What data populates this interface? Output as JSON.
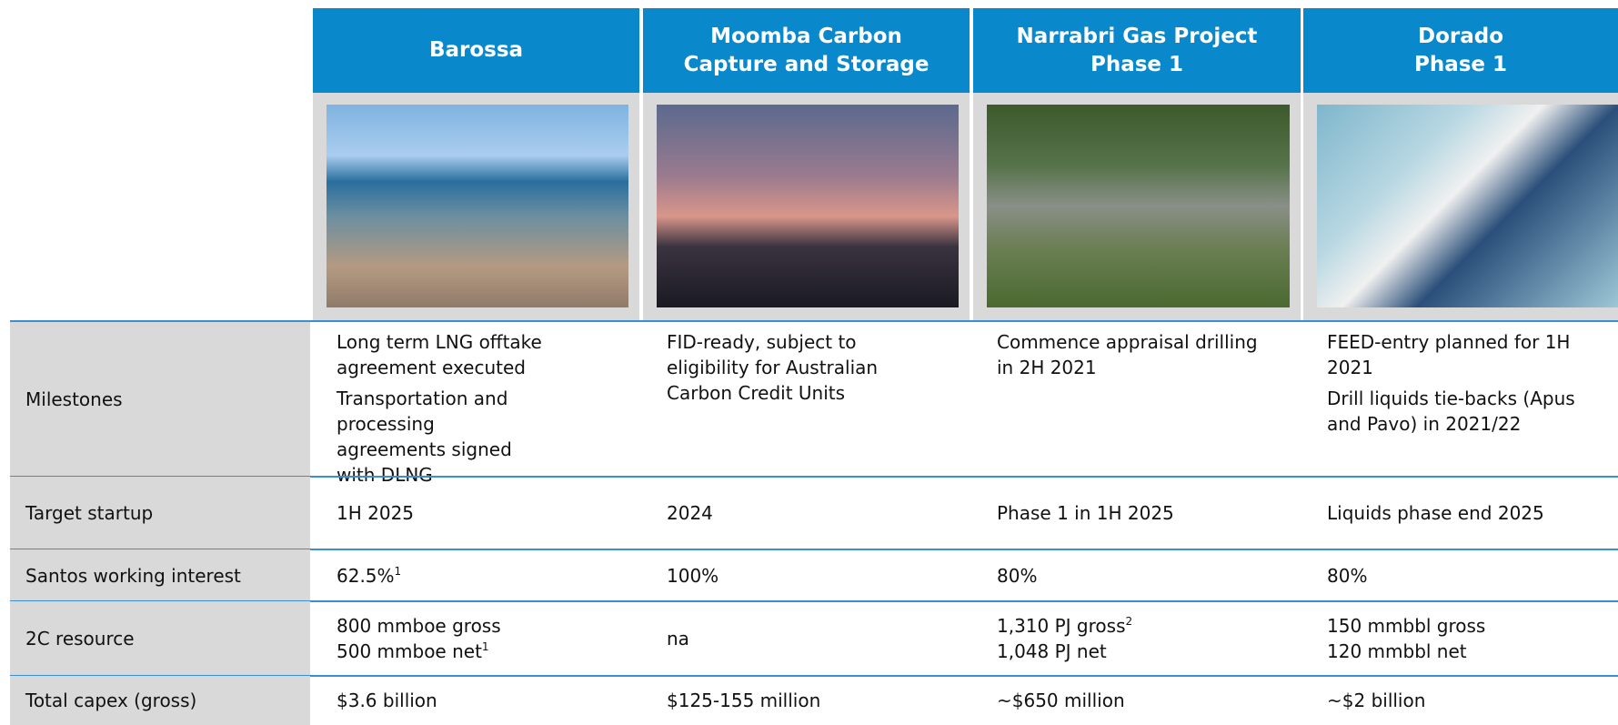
{
  "table": {
    "columns": [
      [
        "Barossa"
      ],
      [
        "Moomba Carbon",
        "Capture and Storage"
      ],
      [
        "Narrabri Gas Project",
        "Phase 1"
      ],
      [
        "Dorado",
        "Phase 1"
      ]
    ],
    "rows": [
      {
        "label": "Milestones",
        "cells": [
          [
            {
              "text": "Long term LNG offtake agreement executed"
            },
            {
              "text": "Transportation and processing agreements signed with DLNG"
            }
          ],
          [
            {
              "text": "FID-ready, subject to eligibility for Australian Carbon Credit Units"
            }
          ],
          [
            {
              "text": "Commence appraisal drilling in 2H 2021"
            }
          ],
          [
            {
              "text": "FEED-entry planned for 1H 2021"
            },
            {
              "text": "Drill liquids tie-backs (Apus and Pavo) in 2021/22"
            }
          ]
        ]
      },
      {
        "label": "Target startup",
        "cells": [
          [
            {
              "text": "1H 2025"
            }
          ],
          [
            {
              "text": "2024"
            }
          ],
          [
            {
              "text": "Phase 1 in 1H 2025"
            }
          ],
          [
            {
              "text": "Liquids phase end 2025"
            }
          ]
        ]
      },
      {
        "label": "Santos working interest",
        "cells": [
          [
            {
              "text": "62.5%",
              "sup": "1"
            }
          ],
          [
            {
              "text": "100%"
            }
          ],
          [
            {
              "text": "80%"
            }
          ],
          [
            {
              "text": "80%"
            }
          ]
        ]
      },
      {
        "label": "2C resource",
        "cells": [
          [
            {
              "text": "800 mmboe gross"
            },
            {
              "text": "500 mmboe net",
              "sup": "1"
            }
          ],
          [
            {
              "text": "na"
            }
          ],
          [
            {
              "text": "1,310 PJ gross",
              "sup": "2"
            },
            {
              "text": "1,048 PJ net"
            }
          ],
          [
            {
              "text": "150 mmbbl gross"
            },
            {
              "text": "120 mmbbl net"
            }
          ]
        ]
      },
      {
        "label": "Total capex (gross)",
        "cells": [
          [
            {
              "text": "$3.6 billion"
            }
          ],
          [
            {
              "text": "$125-155 million"
            }
          ],
          [
            {
              "text": "~$650 million"
            }
          ],
          [
            {
              "text": "~$2 billion"
            }
          ]
        ]
      }
    ]
  }
}
